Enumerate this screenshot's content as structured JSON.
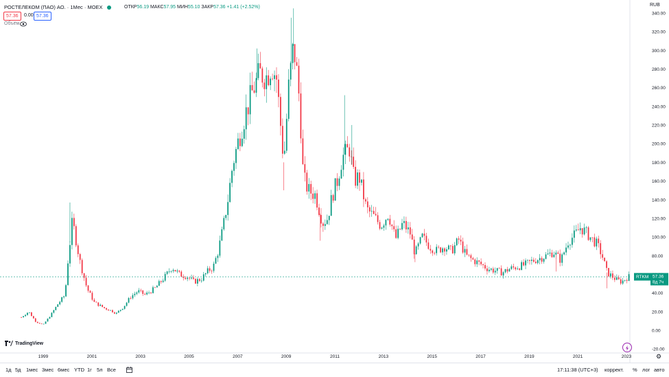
{
  "header": {
    "title": "РОСТЕЛЕКОМ (ПАО) АО. · 1Мес · MOEX",
    "open_label": "ОТКР",
    "open": "56.19",
    "high_label": "МАКС",
    "high": "57.95",
    "low_label": "МИН",
    "low": "55.10",
    "close_label": "ЗАКР",
    "close": "57.36",
    "change": "+1.41 (+2.52%)",
    "sell_price": "57.36",
    "spread": "0.00",
    "buy_price": "57.36",
    "volume_label": "Объём"
  },
  "price_label": {
    "ticker": "RTKM",
    "price": "57.36",
    "countdown": "8д 7ч"
  },
  "currency": "RUB",
  "branding": "TradingView",
  "timeframes": [
    "1д",
    "5д",
    "1мес",
    "3мес",
    "6мес",
    "YTD",
    "1г",
    "5л",
    "Все"
  ],
  "clock": "17:11:38 (UTC+3)",
  "right_buttons": [
    "коррект.",
    "%",
    "лог",
    "авто"
  ],
  "colors": {
    "up": "#089981",
    "down": "#f23645",
    "accent": "#2962ff"
  },
  "chart_data": {
    "type": "candlestick",
    "x_ticks": [
      "1999",
      "2001",
      "2003",
      "2005",
      "2007",
      "2009",
      "2011",
      "2013",
      "2015",
      "2017",
      "2019",
      "2021",
      "2023"
    ],
    "y_ticks": [
      "340.00",
      "320.00",
      "300.00",
      "280.00",
      "260.00",
      "240.00",
      "220.00",
      "200.00",
      "180.00",
      "160.00",
      "140.00",
      "120.00",
      "100.00",
      "80.00",
      "60.00",
      "40.00",
      "20.00",
      "0.00",
      "-20.00"
    ],
    "ylim": [
      -20,
      345
    ],
    "xlim": [
      1997.5,
      2023.5
    ],
    "last_price": 57.36,
    "path": [
      [
        1998.1,
        14
      ],
      [
        1998.4,
        20
      ],
      [
        1998.7,
        9
      ],
      [
        1999.0,
        6
      ],
      [
        1999.3,
        16
      ],
      [
        1999.6,
        28
      ],
      [
        1999.9,
        38
      ],
      [
        2000.0,
        70
      ],
      [
        2000.2,
        118
      ],
      [
        2000.5,
        75
      ],
      [
        2000.8,
        45
      ],
      [
        2001.1,
        30
      ],
      [
        2001.5,
        24
      ],
      [
        2001.8,
        21
      ],
      [
        2002.0,
        18
      ],
      [
        2002.3,
        25
      ],
      [
        2002.6,
        36
      ],
      [
        2002.9,
        42
      ],
      [
        2003.2,
        38
      ],
      [
        2003.6,
        45
      ],
      [
        2004.0,
        57
      ],
      [
        2004.3,
        68
      ],
      [
        2004.6,
        60
      ],
      [
        2004.9,
        58
      ],
      [
        2005.2,
        52
      ],
      [
        2005.5,
        55
      ],
      [
        2005.8,
        64
      ],
      [
        2006.0,
        68
      ],
      [
        2006.2,
        85
      ],
      [
        2006.4,
        110
      ],
      [
        2006.6,
        140
      ],
      [
        2006.8,
        178
      ],
      [
        2007.0,
        200
      ],
      [
        2007.3,
        230
      ],
      [
        2007.6,
        255
      ],
      [
        2007.9,
        275
      ],
      [
        2008.2,
        272
      ],
      [
        2008.4,
        285
      ],
      [
        2008.6,
        270
      ],
      [
        2008.8,
        210
      ],
      [
        2008.9,
        180
      ],
      [
        2009.1,
        260
      ],
      [
        2009.3,
        305
      ],
      [
        2009.4,
        285
      ],
      [
        2009.55,
        245
      ],
      [
        2009.7,
        165
      ],
      [
        2009.9,
        150
      ],
      [
        2010.2,
        145
      ],
      [
        2010.5,
        115
      ],
      [
        2010.7,
        120
      ],
      [
        2010.9,
        145
      ],
      [
        2011.1,
        160
      ],
      [
        2011.3,
        185
      ],
      [
        2011.6,
        195
      ],
      [
        2011.8,
        160
      ],
      [
        2012.0,
        165
      ],
      [
        2012.3,
        130
      ],
      [
        2012.6,
        122
      ],
      [
        2012.9,
        112
      ],
      [
        2013.2,
        125
      ],
      [
        2013.5,
        98
      ],
      [
        2013.8,
        115
      ],
      [
        2014.1,
        104
      ],
      [
        2014.3,
        82
      ],
      [
        2014.6,
        100
      ],
      [
        2014.9,
        90
      ],
      [
        2015.2,
        85
      ],
      [
        2015.5,
        90
      ],
      [
        2015.8,
        85
      ],
      [
        2016.1,
        97
      ],
      [
        2016.4,
        80
      ],
      [
        2016.7,
        75
      ],
      [
        2017.0,
        71
      ],
      [
        2017.3,
        66
      ],
      [
        2017.6,
        64
      ],
      [
        2017.9,
        62
      ],
      [
        2018.2,
        66
      ],
      [
        2018.5,
        68
      ],
      [
        2018.8,
        70
      ],
      [
        2019.1,
        74
      ],
      [
        2019.4,
        77
      ],
      [
        2019.7,
        80
      ],
      [
        2020.0,
        84
      ],
      [
        2020.3,
        75
      ],
      [
        2020.6,
        95
      ],
      [
        2020.9,
        103
      ],
      [
        2021.1,
        110
      ],
      [
        2021.3,
        106
      ],
      [
        2021.5,
        100
      ],
      [
        2021.8,
        92
      ],
      [
        2022.0,
        80
      ],
      [
        2022.2,
        62
      ],
      [
        2022.4,
        58
      ],
      [
        2022.6,
        54
      ],
      [
        2022.8,
        52
      ],
      [
        2023.0,
        56
      ],
      [
        2023.1,
        57.36
      ]
    ],
    "spikes": [
      [
        2000.1,
        137
      ],
      [
        2007.8,
        302
      ],
      [
        2008.9,
        150
      ],
      [
        2009.2,
        335
      ],
      [
        2009.3,
        345
      ],
      [
        2011.4,
        252
      ],
      [
        2011.7,
        220
      ],
      [
        2010.4,
        96
      ],
      [
        2014.3,
        73
      ],
      [
        2020.1,
        63
      ],
      [
        2021.1,
        113
      ],
      [
        2022.2,
        45
      ]
    ]
  }
}
